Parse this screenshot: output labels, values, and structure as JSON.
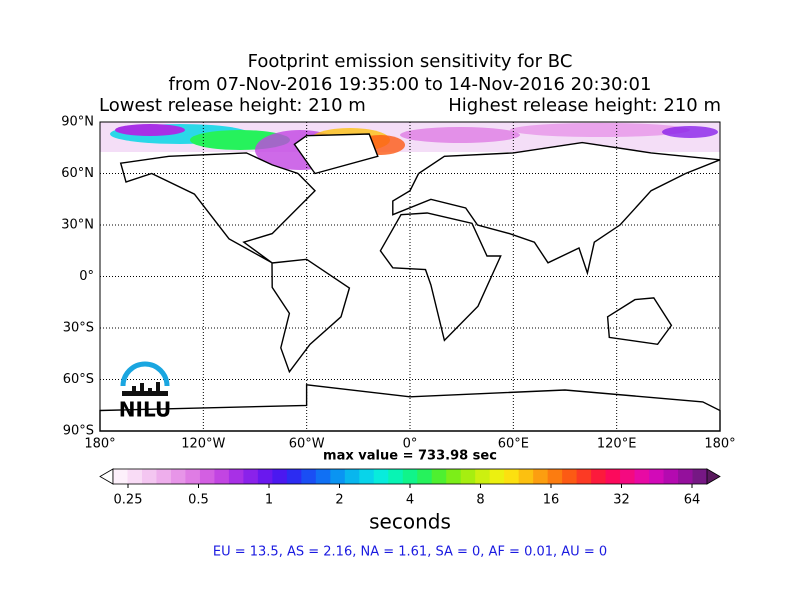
{
  "title": [
    "Footprint emission sensitivity for BC",
    "from 07-Nov-2016 19:35:00 to 14-Nov-2016 20:30:01"
  ],
  "lowest_release": "Lowest release height: 210 m",
  "highest_release": "Highest release height: 210 m",
  "map": {
    "xlim": [
      -180,
      180
    ],
    "ylim": [
      -90,
      90
    ],
    "xticks": [
      {
        "value": -180,
        "label": "180°"
      },
      {
        "value": -120,
        "label": "120°W"
      },
      {
        "value": -60,
        "label": "60°W"
      },
      {
        "value": 0,
        "label": "0°"
      },
      {
        "value": 60,
        "label": "60°E"
      },
      {
        "value": 120,
        "label": "120°E"
      },
      {
        "value": 180,
        "label": "180°"
      }
    ],
    "yticks": [
      {
        "value": 90,
        "label": "90°N"
      },
      {
        "value": 60,
        "label": "60°N"
      },
      {
        "value": 30,
        "label": "30°N"
      },
      {
        "value": 0,
        "label": "0°"
      },
      {
        "value": -30,
        "label": "30°S"
      },
      {
        "value": -60,
        "label": "60°S"
      },
      {
        "value": -90,
        "label": "90°S"
      }
    ],
    "grid": true
  },
  "max_value": "max value = 733.98 sec",
  "logo": "NILU",
  "colorbar": {
    "lim": [
      0.25,
      64
    ],
    "ticks": [
      0.25,
      0.5,
      1,
      2,
      4,
      8,
      16,
      32,
      64
    ],
    "label": "seconds",
    "under_color": "#ffffff",
    "over_color": "#5a1a5e",
    "colors": [
      "#fdf0fb",
      "#f9dcf6",
      "#f4c6f1",
      "#eeaeec",
      "#e795e8",
      "#df7ce4",
      "#d35fe2",
      "#c245e2",
      "#a830e6",
      "#8a22ea",
      "#6a18ee",
      "#4b18f0",
      "#2c2cf2",
      "#1a4ef4",
      "#1070f4",
      "#0a94f2",
      "#08b6ee",
      "#08d4ea",
      "#08ecdc",
      "#08f4b4",
      "#10f48a",
      "#26f25c",
      "#4ef030",
      "#7cee18",
      "#a6ee10",
      "#ccf010",
      "#ecf010",
      "#fce010",
      "#fcc010",
      "#fc9e10",
      "#fc7c10",
      "#fc5a14",
      "#fc3a24",
      "#fc1a3c",
      "#fc0a5c",
      "#f40a80",
      "#e80aa4",
      "#d20ab8",
      "#b40ab0",
      "#94109c",
      "#761884"
    ]
  },
  "regions": "EU = 13.5,  AS = 2.16,  NA = 1.61,  SA = 0,  AF = 0.01,  AU = 0"
}
